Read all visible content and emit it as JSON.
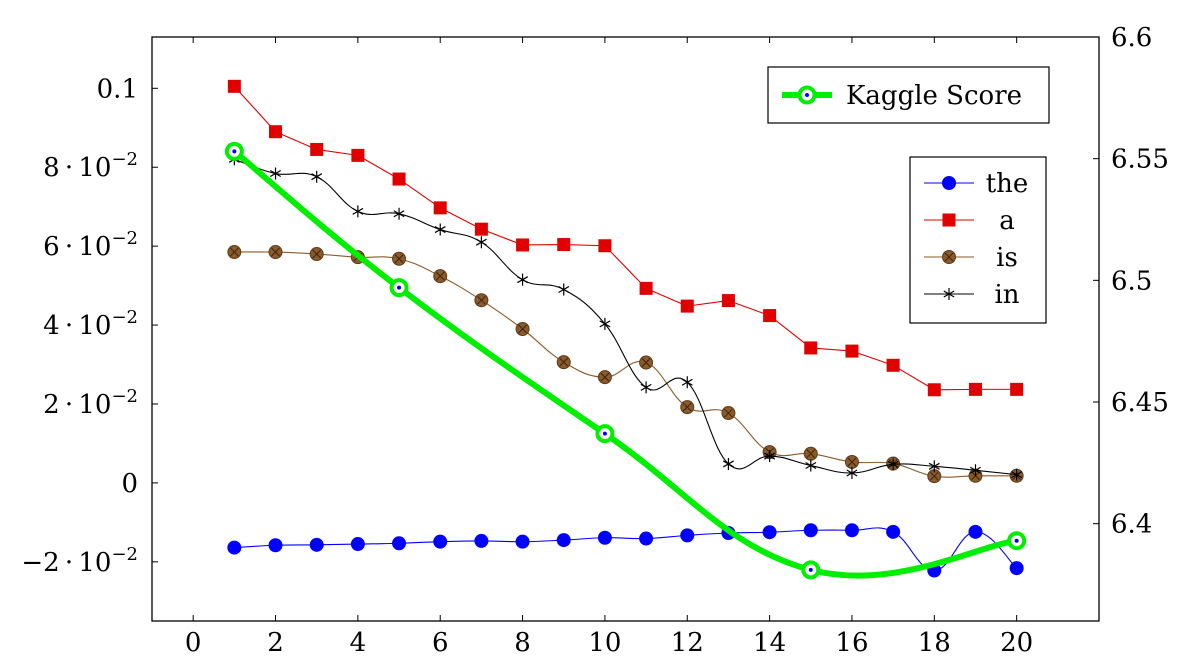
{
  "chart_data": {
    "type": "line",
    "title": "",
    "xlabel": "",
    "ylabel": "",
    "xlim": [
      -1,
      22
    ],
    "ylim_left": [
      -0.035,
      0.113
    ],
    "ylim_right": [
      6.36,
      6.6
    ],
    "grid": false,
    "x_ticks": [
      0,
      2,
      4,
      6,
      8,
      10,
      12,
      14,
      16,
      18,
      20
    ],
    "x_tick_labels": [
      "0",
      "2",
      "4",
      "6",
      "8",
      "10",
      "12",
      "14",
      "16",
      "18",
      "20"
    ],
    "y_left_ticks": [
      -0.02,
      0,
      0.02,
      0.04,
      0.06,
      0.08,
      0.1
    ],
    "y_left_tick_labels": [
      {
        "m": "−2",
        "e": "−2",
        "plain": ""
      },
      {
        "m": "",
        "e": "",
        "plain": "0"
      },
      {
        "m": "2",
        "e": "−2",
        "plain": ""
      },
      {
        "m": "4",
        "e": "−2",
        "plain": ""
      },
      {
        "m": "6",
        "e": "−2",
        "plain": ""
      },
      {
        "m": "8",
        "e": "−2",
        "plain": ""
      },
      {
        "m": "",
        "e": "",
        "plain": "0.1"
      }
    ],
    "y_right_ticks": [
      6.4,
      6.45,
      6.5,
      6.55,
      6.6
    ],
    "y_right_tick_labels": [
      "6.4",
      "6.45",
      "6.5",
      "6.55",
      "6.6"
    ],
    "series": [
      {
        "name": "the",
        "axis": "left",
        "color": "#0000ff",
        "marker": "circle",
        "smooth": true,
        "x": [
          1,
          2,
          3,
          4,
          5,
          6,
          7,
          8,
          9,
          10,
          11,
          12,
          13,
          14,
          15,
          16,
          17,
          18,
          19,
          20
        ],
        "y": [
          -0.0164,
          -0.0158,
          -0.0157,
          -0.0155,
          -0.0153,
          -0.0149,
          -0.0147,
          -0.0149,
          -0.0145,
          -0.0139,
          -0.0141,
          -0.0133,
          -0.0127,
          -0.0125,
          -0.012,
          -0.012,
          -0.0124,
          -0.0222,
          -0.0124,
          -0.0216
        ]
      },
      {
        "name": "a",
        "axis": "left",
        "color": "#e00000",
        "marker": "square",
        "smooth": false,
        "x": [
          1,
          2,
          3,
          4,
          5,
          6,
          7,
          8,
          9,
          10,
          11,
          12,
          13,
          14,
          15,
          16,
          17,
          18,
          19,
          20
        ],
        "y": [
          0.1005,
          0.089,
          0.0845,
          0.083,
          0.077,
          0.0697,
          0.0643,
          0.0603,
          0.0604,
          0.0601,
          0.0493,
          0.0448,
          0.0462,
          0.0424,
          0.0342,
          0.0334,
          0.0298,
          0.0236,
          0.0237,
          0.0237
        ]
      },
      {
        "name": "is",
        "axis": "left",
        "color": "#8b5a2b",
        "marker": "circle-x",
        "smooth": true,
        "x": [
          1,
          2,
          3,
          4,
          5,
          6,
          7,
          8,
          9,
          10,
          11,
          12,
          13,
          14,
          15,
          16,
          17,
          18,
          19,
          20
        ],
        "y": [
          0.0585,
          0.0585,
          0.058,
          0.0572,
          0.0568,
          0.0524,
          0.0463,
          0.039,
          0.0306,
          0.0268,
          0.0305,
          0.0192,
          0.0177,
          0.0078,
          0.0074,
          0.0053,
          0.0049,
          0.0017,
          0.0018,
          0.0018
        ]
      },
      {
        "name": "in",
        "axis": "left",
        "color": "#000000",
        "marker": "star",
        "smooth": true,
        "x": [
          1,
          2,
          3,
          4,
          5,
          6,
          7,
          8,
          9,
          10,
          11,
          12,
          13,
          14,
          15,
          16,
          17,
          18,
          19,
          20
        ],
        "y": [
          0.082,
          0.0784,
          0.0776,
          0.0688,
          0.0682,
          0.0642,
          0.061,
          0.0515,
          0.049,
          0.0403,
          0.0242,
          0.0255,
          0.0048,
          0.0068,
          0.0044,
          0.0025,
          0.0047,
          0.0042,
          0.0032,
          0.0021
        ]
      },
      {
        "name": "Kaggle Score",
        "axis": "right",
        "color": "#00ee00",
        "marker": "ring",
        "smooth": true,
        "x": [
          1,
          5,
          10,
          15,
          20
        ],
        "y": [
          6.553,
          6.497,
          6.437,
          6.381,
          6.393
        ]
      }
    ],
    "legend_right": {
      "placement": "top-right",
      "entries": [
        "Kaggle Score"
      ]
    },
    "legend_left": {
      "placement": "upper-right",
      "entries": [
        "the",
        "a",
        "is",
        "in"
      ]
    }
  }
}
